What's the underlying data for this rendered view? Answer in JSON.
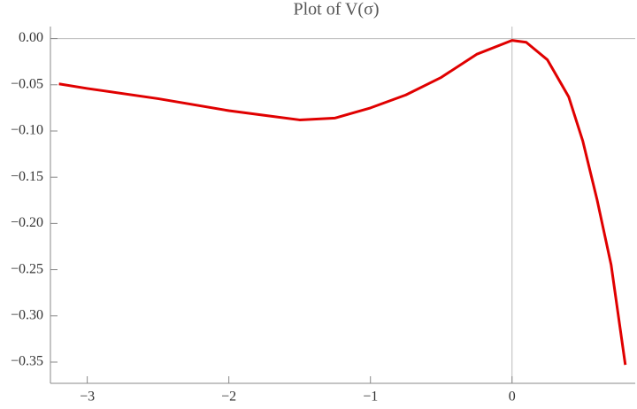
{
  "chart_data": {
    "type": "line",
    "title": "Plot of V(σ)",
    "x": [
      -3.2,
      -3.0,
      -2.5,
      -2.0,
      -1.75,
      -1.5,
      -1.25,
      -1.0,
      -0.75,
      -0.5,
      -0.25,
      0,
      0.1,
      0.25,
      0.4,
      0.5,
      0.6,
      0.7,
      0.8
    ],
    "series": [
      {
        "name": "V(σ)",
        "color": "#e00000",
        "values": [
          -0.049,
          -0.054,
          -0.065,
          -0.078,
          -0.083,
          -0.088,
          -0.086,
          -0.075,
          -0.061,
          -0.042,
          -0.017,
          -0.002,
          -0.004,
          -0.023,
          -0.063,
          -0.111,
          -0.174,
          -0.245,
          -0.353
        ]
      }
    ],
    "xlim": [
      -3.26,
      0.87
    ],
    "ylim": [
      -0.373,
      0.013
    ],
    "xticks": [
      {
        "value": -3,
        "label": "−3"
      },
      {
        "value": -2,
        "label": "−2"
      },
      {
        "value": -1,
        "label": "−1"
      },
      {
        "value": 0,
        "label": "0"
      }
    ],
    "yticks": [
      {
        "value": 0,
        "label": "0.00"
      },
      {
        "value": -0.05,
        "label": "−0.05"
      },
      {
        "value": -0.1,
        "label": "−0.10"
      },
      {
        "value": -0.15,
        "label": "−0.15"
      },
      {
        "value": -0.2,
        "label": "−0.20"
      },
      {
        "value": -0.25,
        "label": "−0.25"
      },
      {
        "value": -0.3,
        "label": "−0.30"
      },
      {
        "value": -0.35,
        "label": "−0.35"
      }
    ],
    "axes_at_origin": true
  }
}
